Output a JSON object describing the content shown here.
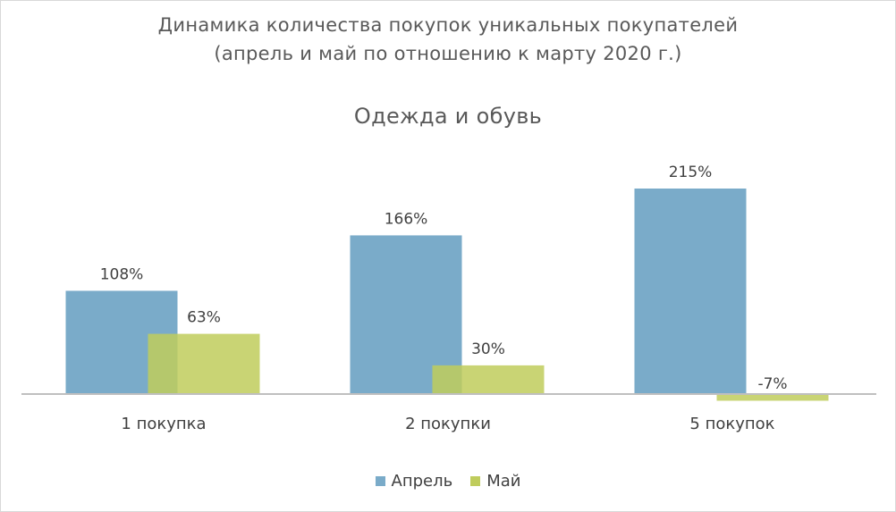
{
  "chart_data": {
    "type": "bar",
    "title": "Динамика количества покупок уникальных покупателей",
    "subtitle": "(апрель и май по отношению к марту 2020 г.)",
    "panel_title": "Одежда и обувь",
    "categories": [
      "1 покупка",
      "2 покупки",
      "5 покупок"
    ],
    "series": [
      {
        "name": "Апрель",
        "values": [
          108,
          166,
          215
        ],
        "labels": [
          "108%",
          "166%",
          "215%"
        ],
        "color": "#7aabc9"
      },
      {
        "name": "Май",
        "values": [
          63,
          30,
          -7
        ],
        "labels": [
          "63%",
          "30%",
          "-7%"
        ],
        "color": "#bfcc5c"
      }
    ],
    "overlap": true,
    "ylim": [
      -10,
      230
    ],
    "grid": false,
    "legend_position": "bottom",
    "axis_color": "#bfbfbf",
    "text_color": "#404040"
  }
}
